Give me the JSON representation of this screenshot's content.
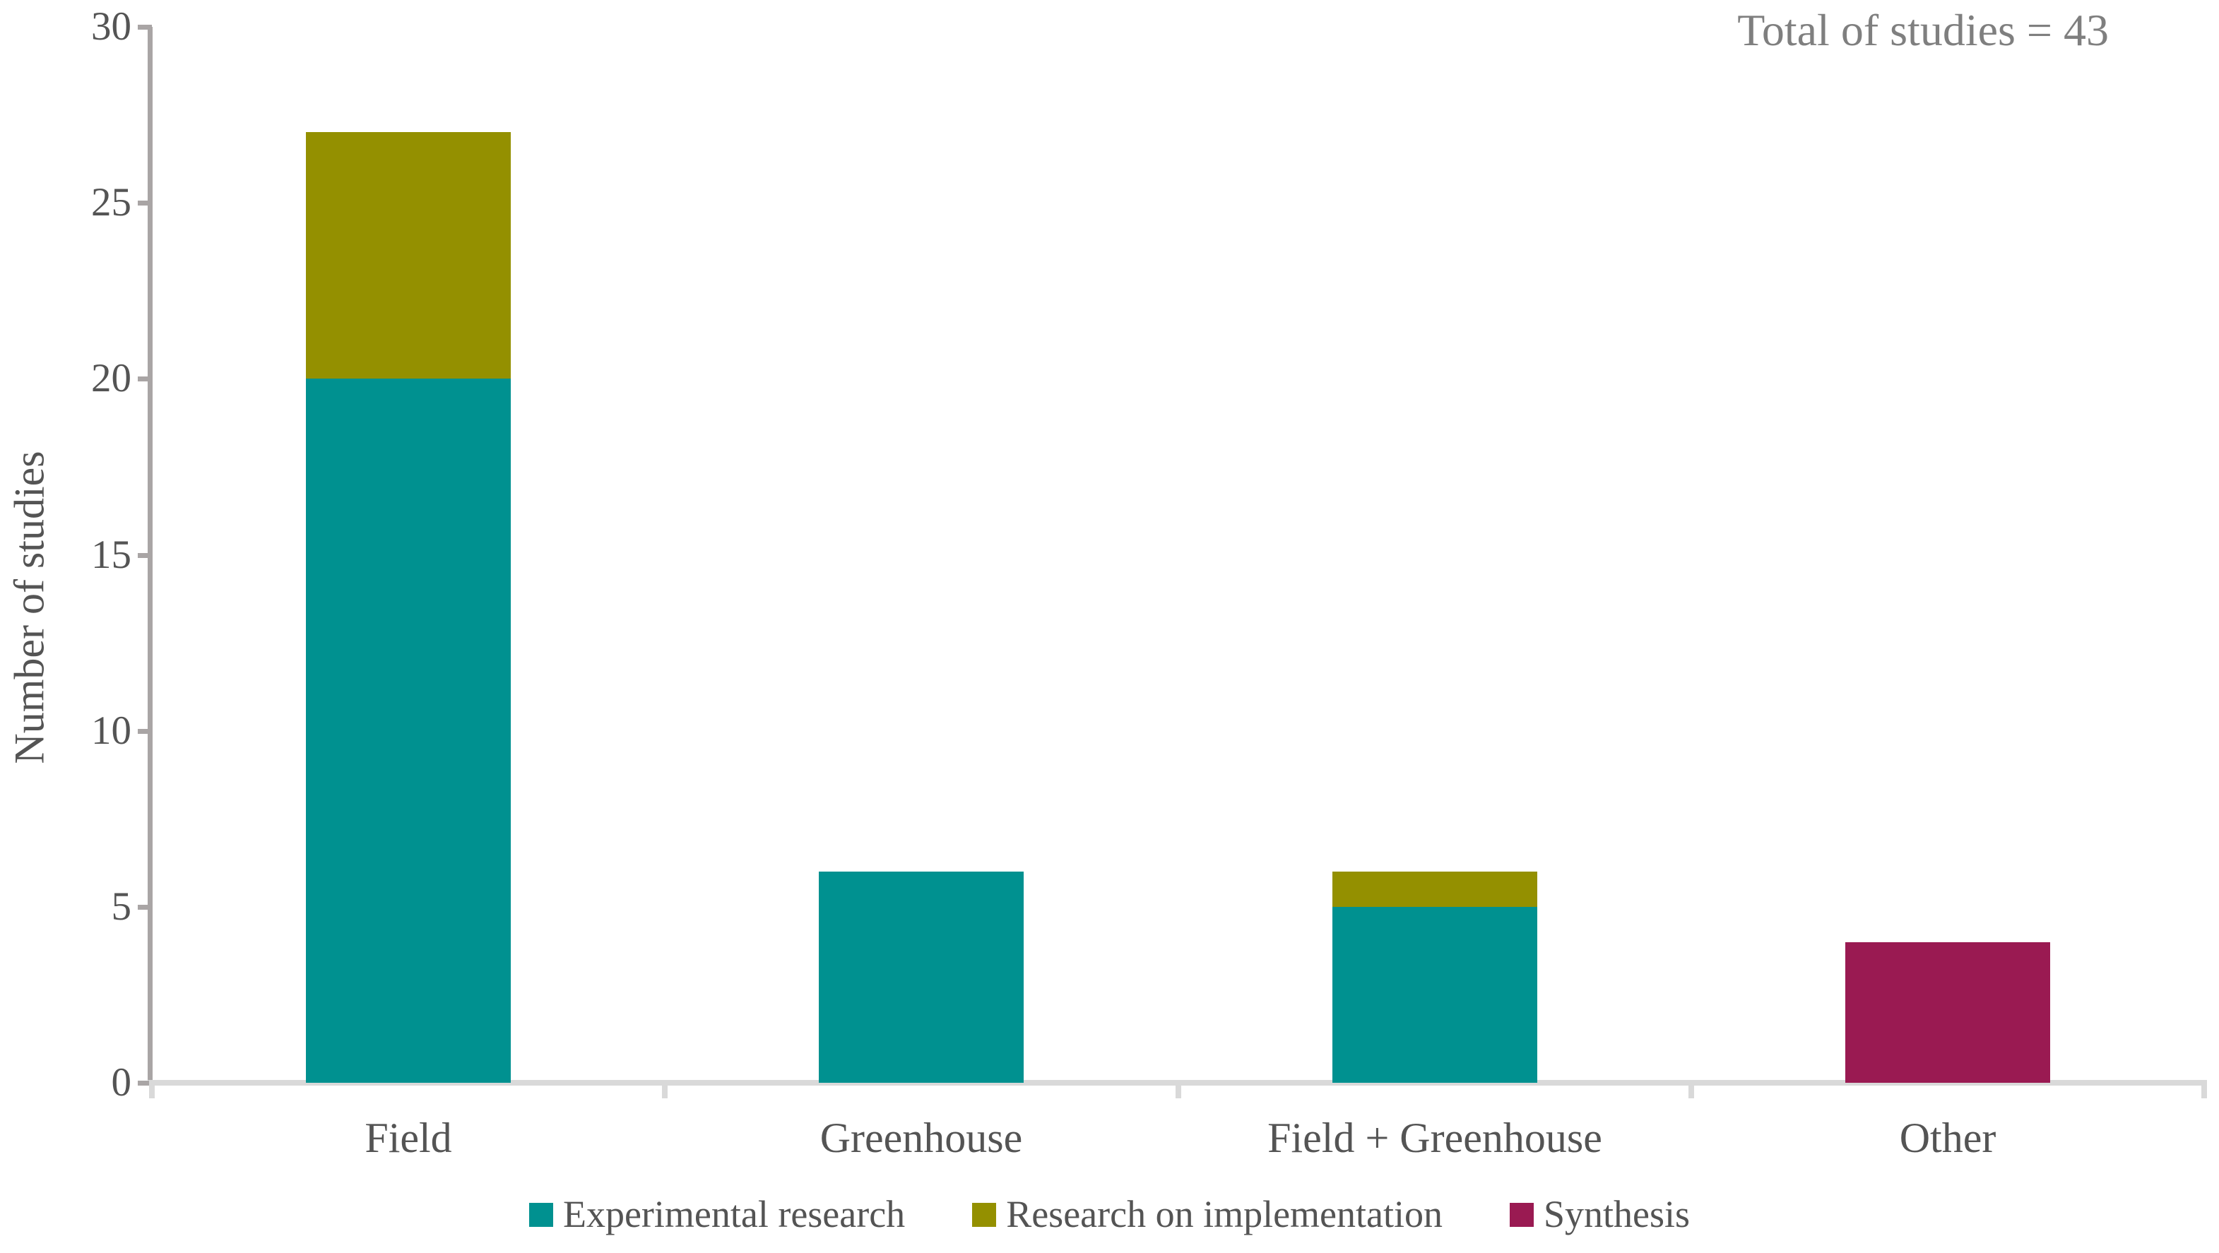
{
  "annotation": "Total of studies = 43",
  "chart_data": {
    "type": "bar",
    "stacked": true,
    "title": "Total of studies = 43",
    "xlabel": "",
    "ylabel": "Number of studies",
    "ylim": [
      0,
      30
    ],
    "y_ticks": [
      0,
      5,
      10,
      15,
      20,
      25,
      30
    ],
    "grid": false,
    "legend_position": "bottom",
    "categories": [
      "Field",
      "Greenhouse",
      "Field + Greenhouse",
      "Other"
    ],
    "series": [
      {
        "name": "Experimental research",
        "color": "#009190",
        "values": [
          20,
          6,
          5,
          0
        ]
      },
      {
        "name": "Research on implementation",
        "color": "#949000",
        "values": [
          7,
          0,
          1,
          0
        ]
      },
      {
        "name": "Synthesis",
        "color": "#9a1a52",
        "values": [
          0,
          0,
          0,
          4
        ]
      }
    ],
    "totals": [
      27,
      6,
      6,
      4
    ],
    "total_of_studies": 43
  },
  "colors": {
    "y_axis_line": "#a9a5a5",
    "x_axis_line": "#d9d9d9",
    "axis_text": "#545454",
    "annotation_text": "#7f7f7f",
    "background": "#ffffff"
  }
}
